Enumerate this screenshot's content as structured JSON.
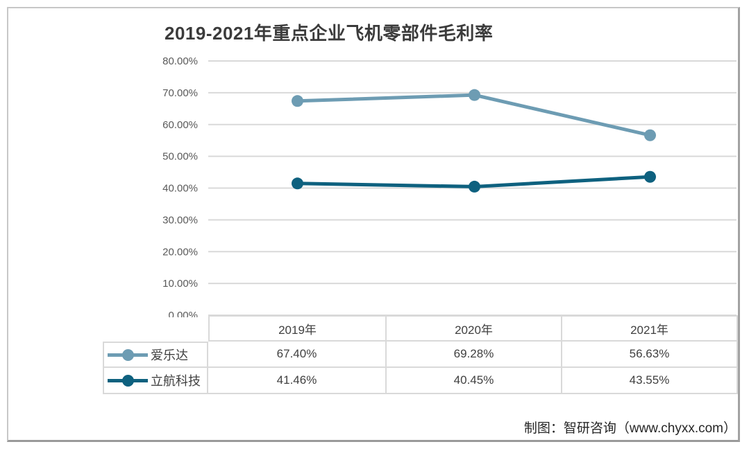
{
  "chart": {
    "title": "2019-2021年重点企业飞机零部件毛利率",
    "footer": "制图：智研咨询（www.chyxx.com）"
  },
  "chart_data": {
    "type": "line",
    "categories": [
      "2019年",
      "2020年",
      "2021年"
    ],
    "series": [
      {
        "name": "爱乐达",
        "values": [
          67.4,
          69.28,
          56.63
        ],
        "color": "#6d9cb3"
      },
      {
        "name": "立航科技",
        "values": [
          41.46,
          40.45,
          43.55
        ],
        "color": "#0e617f"
      }
    ],
    "title": "2019-2021年重点企业飞机零部件毛利率",
    "xlabel": "",
    "ylabel": "",
    "ylim": [
      0,
      80
    ],
    "ytick_step": 10,
    "yticks": [
      "80.00%",
      "70.00%",
      "60.00%",
      "50.00%",
      "40.00%",
      "30.00%",
      "20.00%",
      "10.00%",
      "0.00%"
    ],
    "grid": true,
    "gridline_color": "#d9d9d9",
    "legend_position": "table-left"
  },
  "table": {
    "headers": [
      "2019年",
      "2020年",
      "2021年"
    ],
    "rows": [
      {
        "label": "爱乐达",
        "cells": [
          "67.40%",
          "69.28%",
          "56.63%"
        ]
      },
      {
        "label": "立航科技",
        "cells": [
          "41.46%",
          "40.45%",
          "43.55%"
        ]
      }
    ]
  }
}
